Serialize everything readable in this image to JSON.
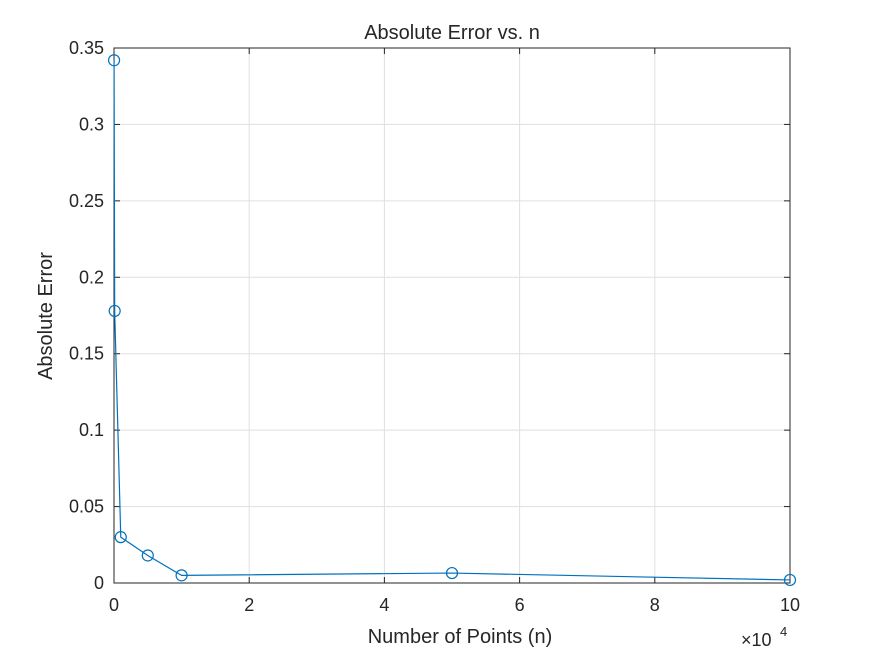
{
  "chart_data": {
    "type": "line",
    "title": "Absolute Error vs. n",
    "xlabel": "Number of Points (n)",
    "ylabel": "Absolute Error",
    "x_exponent_label": "×10",
    "x_exponent_power": "4",
    "xlim": [
      0,
      100000
    ],
    "ylim": [
      0,
      0.35
    ],
    "x_ticks": [
      0,
      20000,
      40000,
      60000,
      80000,
      100000
    ],
    "x_tick_labels": [
      "0",
      "2",
      "4",
      "6",
      "8",
      "10"
    ],
    "y_ticks": [
      0,
      0.05,
      0.1,
      0.15,
      0.2,
      0.25,
      0.3,
      0.35
    ],
    "y_tick_labels": [
      "0",
      "0.05",
      "0.1",
      "0.15",
      "0.2",
      "0.25",
      "0.3",
      "0.35"
    ],
    "grid": true,
    "marker": "circle",
    "series": [
      {
        "color": "#0072bd",
        "x": [
          10,
          100,
          1000,
          5000,
          10000,
          50000,
          100000
        ],
        "y": [
          0.342,
          0.178,
          0.03,
          0.018,
          0.005,
          0.0065,
          0.002
        ]
      }
    ]
  }
}
